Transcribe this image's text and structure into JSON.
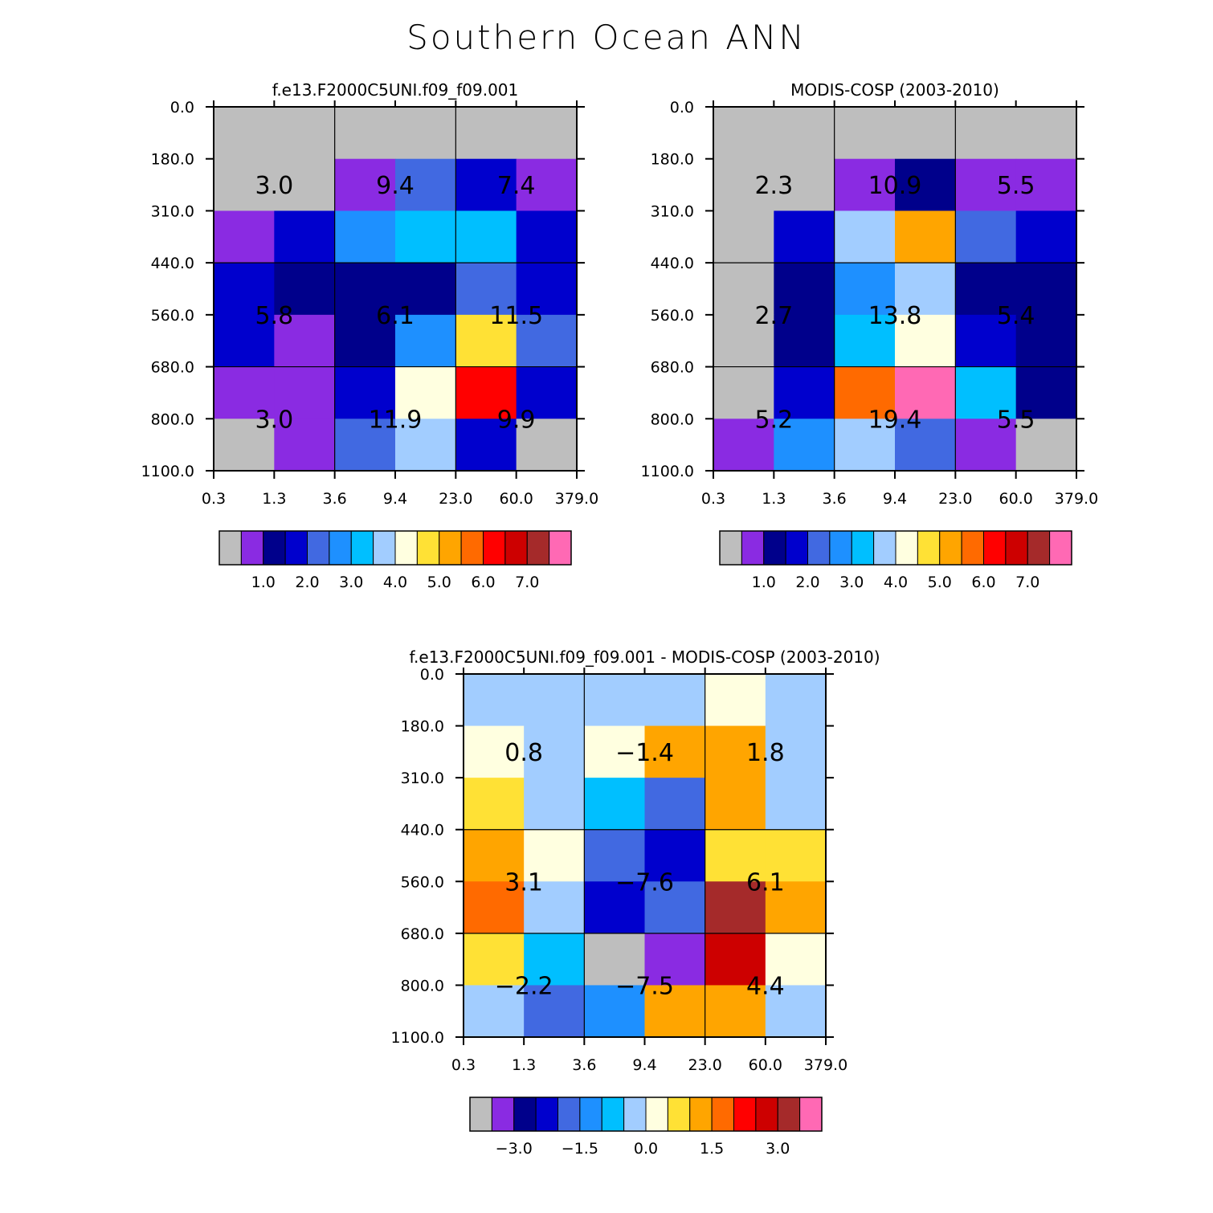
{
  "title": "Southern Ocean ANN",
  "colors": {
    "abs": [
      "#bebebe",
      "#8a2be2",
      "#00008b",
      "#0000cd",
      "#4169e1",
      "#1e90ff",
      "#00bfff",
      "#a2cdff",
      "#ffffe0",
      "#ffe135",
      "#ffa500",
      "#ff6a00",
      "#ff0000",
      "#cd0000",
      "#a52a2a",
      "#ff69b4"
    ],
    "diff": [
      "#bebebe",
      "#8a2be2",
      "#00008b",
      "#0000cd",
      "#4169e1",
      "#1e90ff",
      "#00bfff",
      "#a2cdff",
      "#ffffe0",
      "#ffe135",
      "#ffa500",
      "#ff6a00",
      "#ff0000",
      "#cd0000",
      "#a52a2a",
      "#ff69b4"
    ]
  },
  "chart_data": [
    {
      "type": "heatmap",
      "title": "f.e13.F2000C5UNI.f09_f09.001",
      "x_ticks": [
        "0.3",
        "1.3",
        "3.6",
        "9.4",
        "23.0",
        "60.0",
        "379.0"
      ],
      "y_ticks": [
        "0.0",
        "180.0",
        "310.0",
        "440.0",
        "560.0",
        "680.0",
        "800.0",
        "1100.0"
      ],
      "cells": [
        [
          0,
          0,
          0,
          0,
          0,
          0
        ],
        [
          0,
          0,
          1,
          4,
          3,
          1
        ],
        [
          1,
          3,
          5,
          6,
          6,
          3
        ],
        [
          3,
          2,
          2,
          2,
          4,
          3
        ],
        [
          3,
          1,
          2,
          5,
          9,
          4
        ],
        [
          1,
          1,
          3,
          8,
          12,
          3
        ],
        [
          0,
          1,
          4,
          7,
          3,
          0
        ]
      ],
      "group_values": [
        [
          "3.0",
          "9.4",
          "7.4"
        ],
        [
          "5.8",
          "6.1",
          "11.5"
        ],
        [
          "3.0",
          "11.9",
          "9.9"
        ]
      ],
      "colorbar_labels": [
        "1.0",
        "2.0",
        "3.0",
        "4.0",
        "5.0",
        "6.0",
        "7.0"
      ]
    },
    {
      "type": "heatmap",
      "title": "MODIS-COSP (2003-2010)",
      "x_ticks": [
        "0.3",
        "1.3",
        "3.6",
        "9.4",
        "23.0",
        "60.0",
        "379.0"
      ],
      "y_ticks": [
        "0.0",
        "180.0",
        "310.0",
        "440.0",
        "560.0",
        "680.0",
        "800.0",
        "1100.0"
      ],
      "cells": [
        [
          0,
          0,
          0,
          0,
          0,
          0
        ],
        [
          0,
          0,
          1,
          2,
          1,
          1
        ],
        [
          0,
          3,
          7,
          10,
          4,
          3
        ],
        [
          0,
          2,
          5,
          7,
          2,
          2
        ],
        [
          0,
          2,
          6,
          8,
          3,
          2
        ],
        [
          0,
          3,
          11,
          15,
          6,
          2
        ],
        [
          1,
          5,
          7,
          4,
          1,
          0
        ]
      ],
      "group_values": [
        [
          "2.3",
          "10.9",
          "5.5"
        ],
        [
          "2.7",
          "13.8",
          "5.4"
        ],
        [
          "5.2",
          "19.4",
          "5.5"
        ]
      ],
      "colorbar_labels": [
        "1.0",
        "2.0",
        "3.0",
        "4.0",
        "5.0",
        "6.0",
        "7.0"
      ]
    },
    {
      "type": "heatmap",
      "title": "f.e13.F2000C5UNI.f09_f09.001 - MODIS-COSP (2003-2010)",
      "x_ticks": [
        "0.3",
        "1.3",
        "3.6",
        "9.4",
        "23.0",
        "60.0",
        "379.0"
      ],
      "y_ticks": [
        "0.0",
        "180.0",
        "310.0",
        "440.0",
        "560.0",
        "680.0",
        "800.0",
        "1100.0"
      ],
      "cells": [
        [
          7,
          7,
          7,
          7,
          8,
          7
        ],
        [
          8,
          7,
          8,
          10,
          10,
          7
        ],
        [
          9,
          7,
          6,
          4,
          10,
          7
        ],
        [
          10,
          8,
          4,
          3,
          9,
          9
        ],
        [
          11,
          7,
          3,
          4,
          14,
          10
        ],
        [
          9,
          6,
          0,
          1,
          13,
          8
        ],
        [
          7,
          4,
          5,
          10,
          10,
          7
        ]
      ],
      "group_values": [
        [
          "0.8",
          "−1.4",
          "1.8"
        ],
        [
          "3.1",
          "−7.6",
          "6.1"
        ],
        [
          "−2.2",
          "−7.5",
          "4.4"
        ]
      ],
      "colorbar_labels": [
        "−3.0",
        "−1.5",
        "0.0",
        "1.5",
        "3.0"
      ]
    }
  ]
}
